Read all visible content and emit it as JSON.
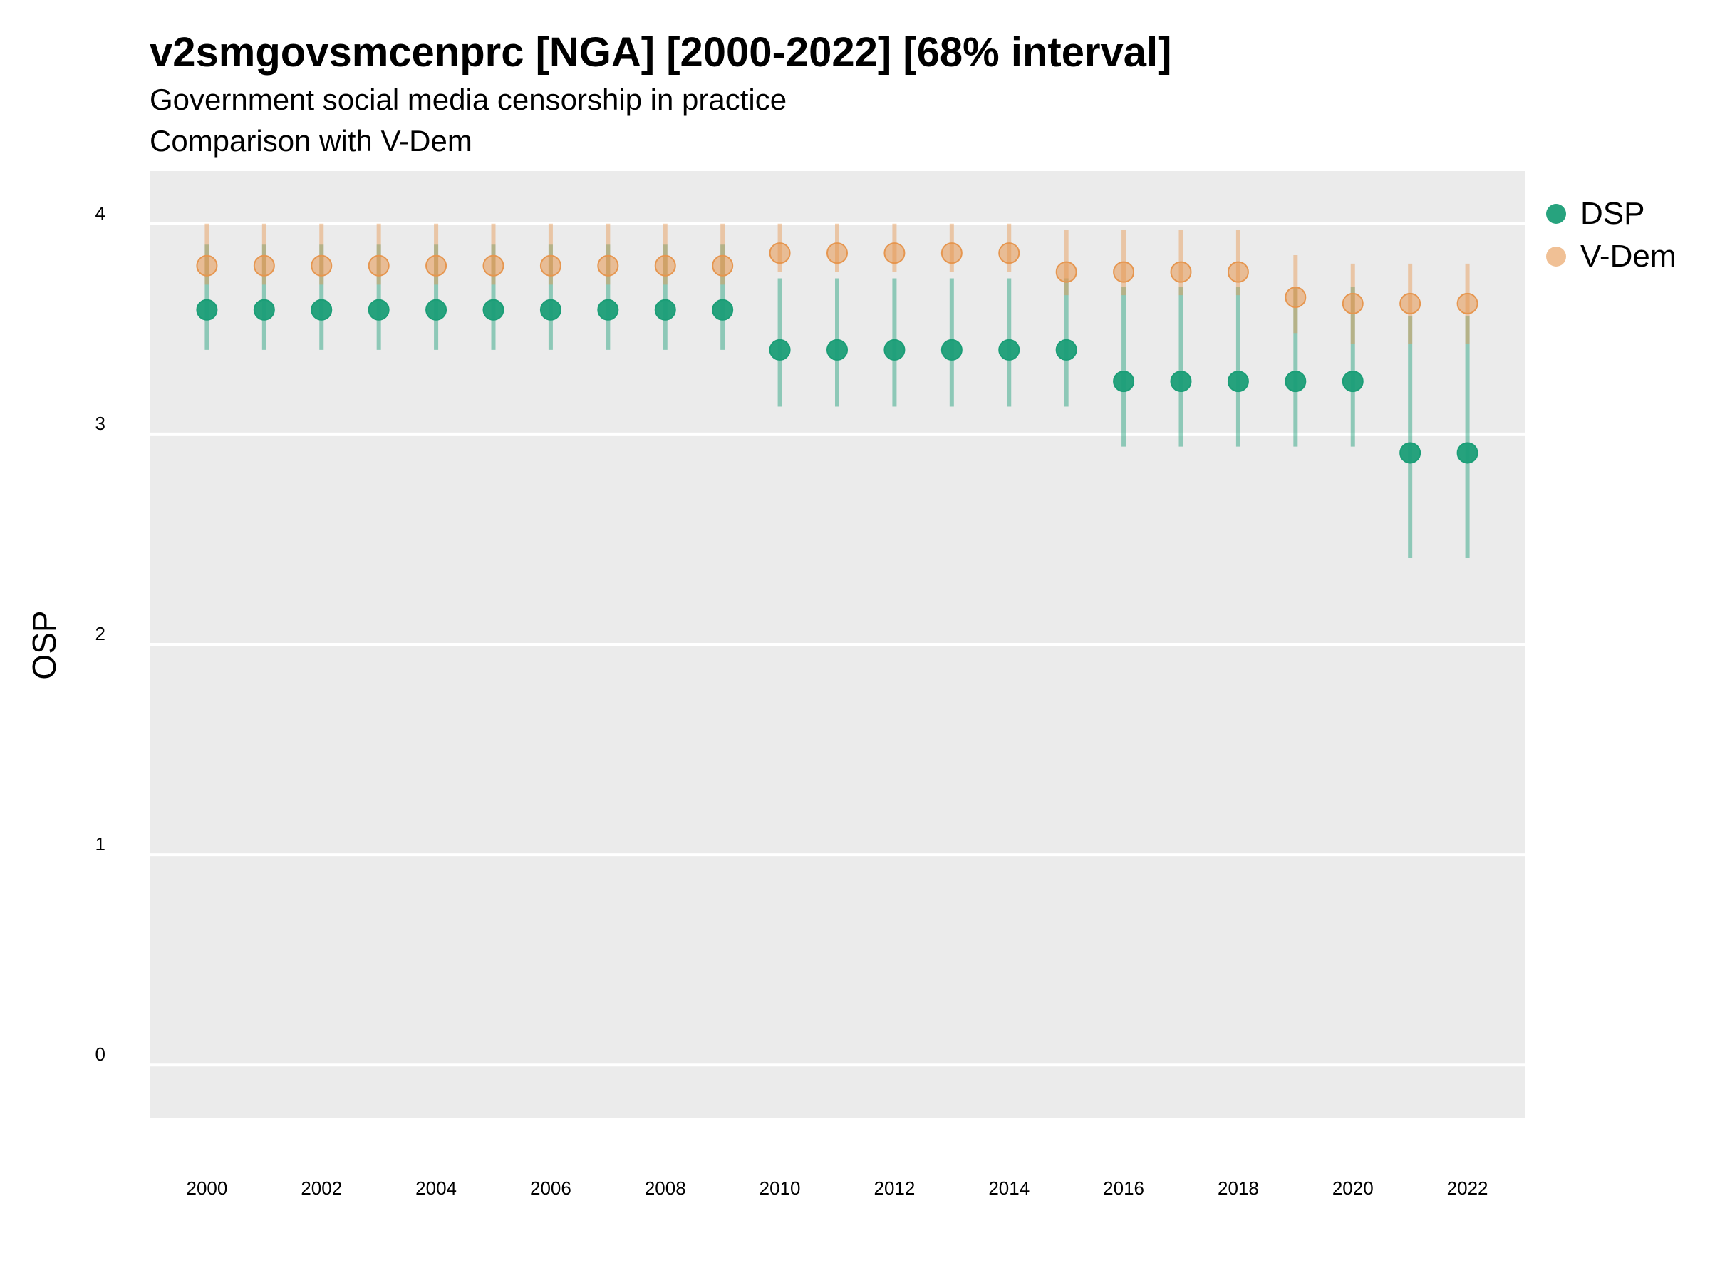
{
  "title": "v2smgovsmcenprc [NGA] [2000-2022] [68% interval]",
  "subtitle_line1": "Government social media censorship in practice",
  "subtitle_line2": "Comparison with V-Dem",
  "colors": {
    "panel": "#ebebeb",
    "grid": "#ffffff",
    "dsp": "#1b9e77",
    "vdem": "#e6964f"
  },
  "chart_data": {
    "type": "scatter",
    "title": "v2smgovsmcenprc [NGA] [2000-2022] [68% interval]",
    "subtitle": "Government social media censorship in practice",
    "xlabel": "",
    "ylabel": "OSP",
    "x": [
      2000,
      2001,
      2002,
      2003,
      2004,
      2005,
      2006,
      2007,
      2008,
      2009,
      2010,
      2011,
      2012,
      2013,
      2014,
      2015,
      2016,
      2017,
      2018,
      2019,
      2020,
      2021,
      2022
    ],
    "xticks": [
      "2000",
      "2002",
      "2004",
      "2006",
      "2008",
      "2010",
      "2012",
      "2014",
      "2016",
      "2018",
      "2020",
      "2022"
    ],
    "yticks": [
      "0",
      "1",
      "2",
      "3",
      "4"
    ],
    "xlim": [
      1999.0,
      2023.0
    ],
    "ylim": [
      -0.25,
      4.25
    ],
    "grid": true,
    "legend_position": "right",
    "series": [
      {
        "name": "DSP",
        "color": "#1b9e77",
        "values": [
          3.59,
          3.59,
          3.59,
          3.59,
          3.59,
          3.59,
          3.59,
          3.59,
          3.59,
          3.59,
          3.4,
          3.4,
          3.4,
          3.4,
          3.4,
          3.4,
          3.25,
          3.25,
          3.25,
          3.25,
          3.25,
          2.91,
          2.91
        ],
        "lower": [
          3.4,
          3.4,
          3.4,
          3.4,
          3.4,
          3.4,
          3.4,
          3.4,
          3.4,
          3.4,
          3.13,
          3.13,
          3.13,
          3.13,
          3.13,
          3.13,
          2.94,
          2.94,
          2.94,
          2.94,
          2.94,
          2.41,
          2.41
        ],
        "upper": [
          3.9,
          3.9,
          3.9,
          3.9,
          3.9,
          3.9,
          3.9,
          3.9,
          3.9,
          3.9,
          3.74,
          3.74,
          3.74,
          3.74,
          3.74,
          3.74,
          3.7,
          3.7,
          3.7,
          3.7,
          3.7,
          3.56,
          3.56
        ]
      },
      {
        "name": "V-Dem",
        "color": "#e6964f",
        "values": [
          3.8,
          3.8,
          3.8,
          3.8,
          3.8,
          3.8,
          3.8,
          3.8,
          3.8,
          3.8,
          3.86,
          3.86,
          3.86,
          3.86,
          3.86,
          3.77,
          3.77,
          3.77,
          3.77,
          3.65,
          3.62,
          3.62,
          3.62
        ],
        "lower": [
          3.71,
          3.71,
          3.71,
          3.71,
          3.71,
          3.71,
          3.71,
          3.71,
          3.71,
          3.71,
          3.77,
          3.77,
          3.77,
          3.77,
          3.77,
          3.66,
          3.66,
          3.66,
          3.66,
          3.48,
          3.43,
          3.43,
          3.43
        ],
        "upper": [
          4.0,
          4.0,
          4.0,
          4.0,
          4.0,
          4.0,
          4.0,
          4.0,
          4.0,
          4.0,
          4.0,
          4.0,
          4.0,
          4.0,
          4.0,
          3.97,
          3.97,
          3.97,
          3.97,
          3.85,
          3.81,
          3.81,
          3.81
        ]
      }
    ]
  }
}
